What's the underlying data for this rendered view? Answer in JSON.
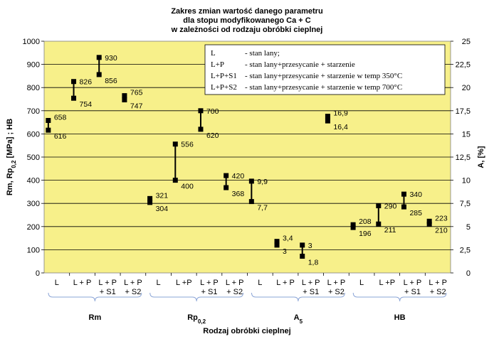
{
  "chart_data": {
    "type": "range",
    "title_lines": [
      "Zakres zmian wartość danego parametru",
      "dla stopu modyfikowanego Ca + C",
      "w zależności od rodzaju obróbki cieplnej"
    ],
    "xlabel": "Rodzaj obróbki cieplnej",
    "ylabel_left": "Rm, Rp0,2 [MPa] ; HB",
    "ylabel_right": "A, [%]",
    "ylim_left": [
      0,
      1000
    ],
    "ylim_right": [
      0,
      25
    ],
    "yticks_left": [
      "0",
      "100",
      "200",
      "300",
      "400",
      "500",
      "600",
      "700",
      "800",
      "900",
      "1000"
    ],
    "yticks_right": [
      "0",
      "2,5",
      "5",
      "7,5",
      "10",
      "12,5",
      "15",
      "17,5",
      "20",
      "22,5",
      "25"
    ],
    "grid": true,
    "background": "#f7f08a",
    "bar_color": "#000000",
    "bracket_color": "#8aa4d6",
    "legend": [
      {
        "key": "L",
        "desc": "- stan lany;"
      },
      {
        "key": "L+P",
        "desc": "- stan lany+przesycanie  + starzenie"
      },
      {
        "key": "L+P+S1",
        "desc": "- stan lany+przesycanie  + starzenie  w temp 350°C"
      },
      {
        "key": "L+P+S2",
        "desc": "- stan lany+przesycanie  + starzenie  w temp 700°C"
      }
    ],
    "groups": [
      {
        "name": "Rm",
        "name_sub": "",
        "axis": "left",
        "items": [
          {
            "category": [
              "L"
            ],
            "min": 616,
            "max": 658,
            "min_label": "616",
            "max_label": "658"
          },
          {
            "category": [
              "L + P"
            ],
            "min": 754,
            "max": 826,
            "min_label": "754",
            "max_label": "826"
          },
          {
            "category": [
              "L + P",
              "+ S1"
            ],
            "min": 856,
            "max": 930,
            "min_label": "856",
            "max_label": "930"
          },
          {
            "category": [
              "L + P",
              "+ S2"
            ],
            "min": 747,
            "max": 765,
            "min_label": "747",
            "max_label": "765"
          }
        ]
      },
      {
        "name": "Rp",
        "name_sub": "0,2",
        "axis": "left",
        "items": [
          {
            "category": [
              "L"
            ],
            "min": 304,
            "max": 321,
            "min_label": "304",
            "max_label": "321"
          },
          {
            "category": [
              "L +P"
            ],
            "min": 400,
            "max": 556,
            "min_label": "400",
            "max_label": "556"
          },
          {
            "category": [
              "L + P",
              "+ S1"
            ],
            "min": 620,
            "max": 700,
            "min_label": "620",
            "max_label": "700"
          },
          {
            "category": [
              "L + P",
              "+ S2"
            ],
            "min": 368,
            "max": 420,
            "min_label": "368",
            "max_label": "420"
          }
        ]
      },
      {
        "name": "A",
        "name_sub": "5",
        "axis": "right",
        "items": [
          {
            "category": [
              "L"
            ],
            "min": 7.7,
            "max": 9.9,
            "min_label": "7,7",
            "max_label": "9,9"
          },
          {
            "category": [
              "L + P"
            ],
            "min": 3,
            "max": 3.4,
            "min_label": "3",
            "max_label": "3,4"
          },
          {
            "category": [
              "L + P",
              "+ S1"
            ],
            "min": 1.8,
            "max": 3,
            "min_label": "1,8",
            "max_label": "3"
          },
          {
            "category": [
              "L + P",
              "+ S2"
            ],
            "min": 16.4,
            "max": 16.9,
            "min_label": "16,4",
            "max_label": "16,9"
          }
        ]
      },
      {
        "name": "HB",
        "name_sub": "",
        "axis": "left",
        "items": [
          {
            "category": [
              "L"
            ],
            "min": 196,
            "max": 208,
            "min_label": "196",
            "max_label": "208"
          },
          {
            "category": [
              "L +P"
            ],
            "min": 211,
            "max": 290,
            "min_label": "211",
            "max_label": "290"
          },
          {
            "category": [
              "L + P",
              "+ S1"
            ],
            "min": 285,
            "max": 340,
            "min_label": "285",
            "max_label": "340"
          },
          {
            "category": [
              "L + P",
              "+ S2"
            ],
            "min": 210,
            "max": 223,
            "min_label": "210",
            "max_label": "223"
          }
        ]
      }
    ]
  }
}
